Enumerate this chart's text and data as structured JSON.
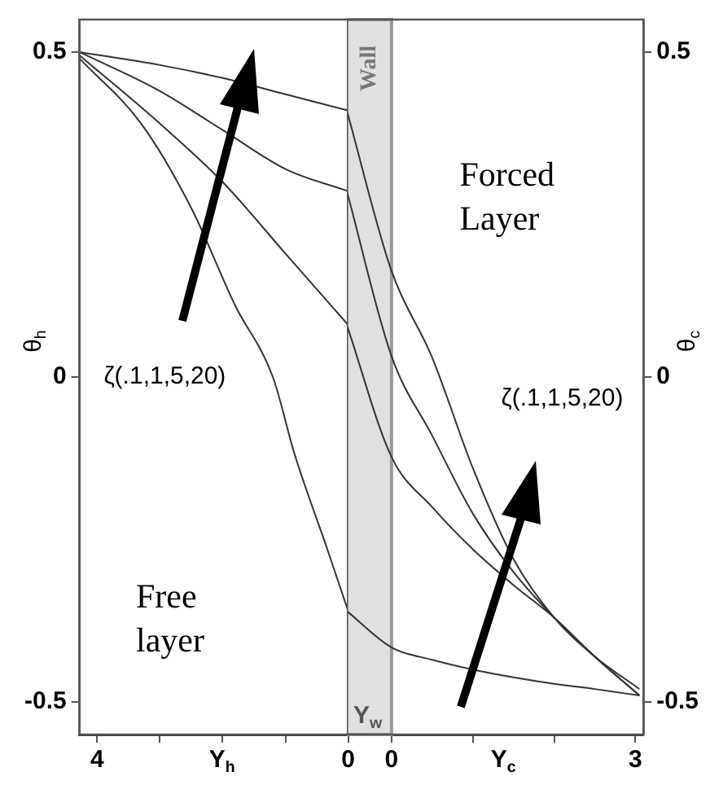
{
  "chart_data": [
    {
      "type": "line",
      "xlabel": "Y$_{h}$",
      "ylabel": "θ$_{h}$",
      "xlim": [
        4.28,
        0
      ],
      "xticks": [
        4,
        {
          "value": 3,
          "label": null
        },
        {
          "value": 2,
          "label": null
        },
        {
          "value": 1,
          "label": null
        },
        0
      ],
      "ylim": [
        -0.55,
        0.55
      ],
      "yticks": [
        -0.5,
        0,
        0.5
      ],
      "annotations": [
        "ζ(.1,1,5,20)",
        "Free layer"
      ],
      "series": [
        {
          "color": "#333333",
          "x": [
            4.28,
            3,
            2,
            1,
            0
          ],
          "values": [
            0.5,
            0.48,
            0.46,
            0.435,
            0.41
          ]
        },
        {
          "color": "#333333",
          "x": [
            4.28,
            3,
            2,
            1,
            0
          ],
          "values": [
            0.5,
            0.44,
            0.38,
            0.32,
            0.286
          ]
        },
        {
          "color": "#333333",
          "x": [
            4.28,
            3,
            2,
            1,
            0
          ],
          "values": [
            0.495,
            0.39,
            0.3,
            0.19,
            0.08
          ]
        },
        {
          "color": "#333333",
          "x": [
            4.28,
            3.3,
            2.5,
            1.8,
            1.2,
            0.85,
            0.35,
            0
          ],
          "values": [
            0.49,
            0.39,
            0.26,
            0.11,
            0,
            -0.12,
            -0.26,
            -0.36
          ]
        }
      ]
    },
    {
      "type": "line",
      "xlabel": "Y$_{c}$",
      "y2label": "θ$_{c}$",
      "xlim": [
        -0.55,
        3.1
      ],
      "xticks": [
        0,
        {
          "value": 1,
          "label": null
        },
        {
          "value": 2,
          "label": null
        },
        3
      ],
      "y2lim": [
        -0.55,
        0.55
      ],
      "y2ticks": [
        -0.5,
        0,
        0.5
      ],
      "bands": [
        {
          "axis": "x",
          "from": -0.55,
          "to": 0,
          "label": "Wall",
          "color": "#e0e0e0"
        }
      ],
      "annotations": [
        "Forced Layer",
        "ζ(.1,1,5,20)",
        "Y$_{w}$"
      ],
      "series": [
        {
          "color": "#333333",
          "axis": "y2",
          "x": [
            -0.55,
            0,
            0.5,
            1,
            1.5,
            2,
            2.5,
            3.05
          ],
          "values": [
            0.41,
            0.163,
            0.03,
            -0.14,
            -0.28,
            -0.37,
            -0.43,
            -0.48
          ]
        },
        {
          "color": "#333333",
          "axis": "y2",
          "x": [
            -0.55,
            0,
            0.5,
            1,
            1.5,
            2,
            2.5,
            3.05
          ],
          "values": [
            0.286,
            0.032,
            -0.09,
            -0.21,
            -0.3,
            -0.37,
            -0.43,
            -0.49
          ]
        },
        {
          "color": "#333333",
          "axis": "y2",
          "x": [
            -0.55,
            0,
            0.5,
            1,
            1.5,
            2,
            2.5,
            3.05
          ],
          "values": [
            0.08,
            -0.123,
            -0.2,
            -0.265,
            -0.32,
            -0.37,
            -0.43,
            -0.49
          ]
        },
        {
          "color": "#333333",
          "axis": "y2",
          "x": [
            -0.55,
            0,
            0.5,
            1,
            1.5,
            2,
            2.5,
            3.05
          ],
          "values": [
            -0.36,
            -0.416,
            -0.435,
            -0.45,
            -0.462,
            -0.472,
            -0.48,
            -0.49
          ]
        }
      ]
    }
  ]
}
